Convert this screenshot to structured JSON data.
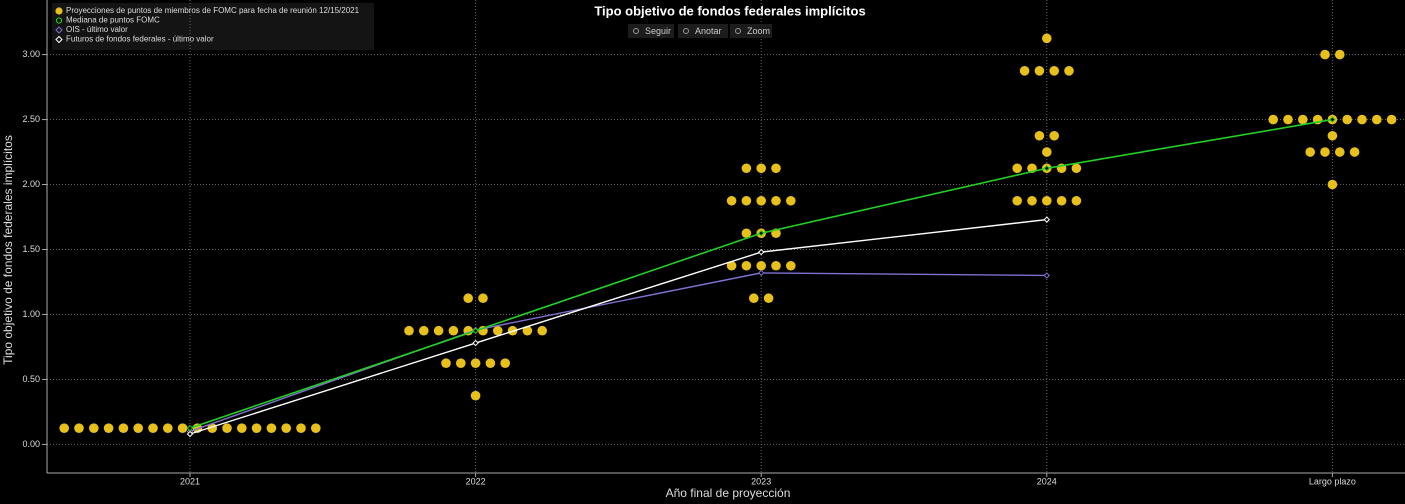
{
  "chart_data": {
    "type": "scatter",
    "title": "Tipo objetivo de fondos federales implícitos",
    "x_label": "Año final de proyección",
    "y_label": "Tipo objetivo de fondos federales implícitos",
    "categories": [
      "2021",
      "2022",
      "2023",
      "2024",
      "Largo plazo"
    ],
    "series": [
      {
        "name": "Proyecciones de puntos de miembros de FOMC para fecha de reunión 12/15/2021",
        "color": "#e8c01c",
        "values": [
          [
            0.125,
            0.125,
            0.125,
            0.125,
            0.125,
            0.125,
            0.125,
            0.125,
            0.125,
            0.125,
            0.125,
            0.125,
            0.125,
            0.125,
            0.125,
            0.125,
            0.125,
            0.125
          ],
          [
            1.125,
            1.125,
            0.875,
            0.875,
            0.875,
            0.875,
            0.875,
            0.875,
            0.875,
            0.875,
            0.875,
            0.875,
            0.625,
            0.625,
            0.625,
            0.625,
            0.625,
            0.375
          ],
          [
            2.125,
            2.125,
            2.125,
            1.875,
            1.875,
            1.875,
            1.875,
            1.875,
            1.625,
            1.625,
            1.625,
            1.375,
            1.375,
            1.375,
            1.375,
            1.375,
            1.125,
            1.125
          ],
          [
            3.125,
            2.875,
            2.875,
            2.875,
            2.875,
            2.375,
            2.375,
            2.25,
            2.125,
            2.125,
            2.125,
            2.125,
            2.125,
            1.875,
            1.875,
            1.875,
            1.875,
            1.875
          ],
          [
            3.0,
            3.0,
            2.5,
            2.5,
            2.5,
            2.5,
            2.5,
            2.5,
            2.5,
            2.5,
            2.5,
            2.375,
            2.25,
            2.25,
            2.25,
            2.25,
            2.0
          ]
        ]
      },
      {
        "name": "Mediana de puntos FOMC",
        "color": "#22d022",
        "values": [
          0.125,
          0.875,
          1.625,
          2.125,
          2.5
        ]
      },
      {
        "name": "OIS - último valor",
        "color": "#8070d0",
        "values": [
          0.1,
          0.88,
          1.32,
          1.3,
          null
        ]
      },
      {
        "name": "Futuros de fondos federales - último valor",
        "color": "#ffffff",
        "values": [
          0.08,
          0.78,
          1.48,
          1.73,
          null
        ]
      }
    ],
    "ylim": [
      -0.22,
      3.42
    ],
    "yticks": [
      {
        "value": 0,
        "label": "0.00"
      },
      {
        "value": 0.5,
        "label": "0.50"
      },
      {
        "value": 1,
        "label": "1.00"
      },
      {
        "value": 1.5,
        "label": "1.50"
      },
      {
        "value": 2,
        "label": "2.00"
      },
      {
        "value": 2.5,
        "label": "2.50"
      },
      {
        "value": 3,
        "label": "3.00"
      }
    ],
    "grid": true
  },
  "toolbar": [
    "Seguir",
    "Anotar",
    "Zoom"
  ]
}
